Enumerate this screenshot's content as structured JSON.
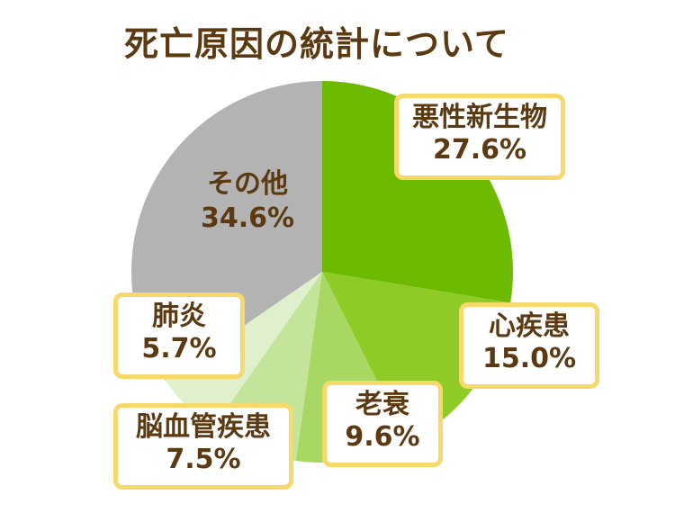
{
  "title": "死亡原因の統計について",
  "chart_data": {
    "type": "pie",
    "slices": [
      {
        "label": "悪性新生物",
        "display": "27.6%",
        "value": 27.6,
        "color": "#6cbb00"
      },
      {
        "label": "心疾患",
        "display": "15.0%",
        "value": 15.0,
        "color": "#8fcb26"
      },
      {
        "label": "老衰",
        "display": "9.6%",
        "value": 9.6,
        "color": "#a8d863"
      },
      {
        "label": "脳血管疾患",
        "display": "7.5%",
        "value": 7.5,
        "color": "#c4e49b"
      },
      {
        "label": "肺炎",
        "display": "5.7%",
        "value": 5.7,
        "color": "#e0f0cc"
      },
      {
        "label": "その他",
        "display": "34.6%",
        "value": 34.6,
        "color": "#b3b3b3"
      }
    ],
    "label_border_color": "#f6d86b",
    "text_color": "#5b3a12"
  }
}
